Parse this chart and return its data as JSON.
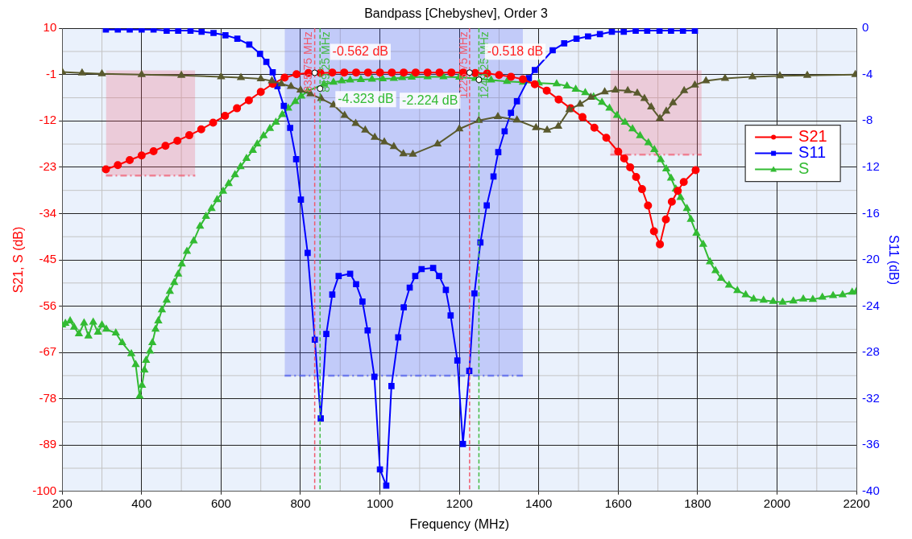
{
  "chart_data": {
    "type": "line",
    "title": "Bandpass [Chebyshev], Order 3",
    "xlabel": "Frequency (MHz)",
    "ylabel": "S21, S (dB)",
    "y2label": "S11 (dB)",
    "xlim": [
      200,
      2200
    ],
    "xticks": [
      200,
      400,
      600,
      800,
      1000,
      1200,
      1400,
      1600,
      1800,
      2000,
      2200
    ],
    "ylim": [
      -100,
      10
    ],
    "yticks": [
      10,
      -1,
      -12,
      -23,
      -34,
      -45,
      -56,
      -67,
      -78,
      -89,
      -100
    ],
    "y2lim": [
      -40,
      0
    ],
    "y2ticks": [
      0,
      -4,
      -8,
      -12,
      -16,
      -20,
      -24,
      -28,
      -32,
      -36,
      -40
    ],
    "grid": true,
    "legend": "right",
    "series": [
      {
        "type": "area",
        "color": "#f05a6e",
        "line_style": "dashed",
        "marker": "none",
        "x": [
          310,
          535
        ],
        "values": [
          -25,
          -25
        ]
      },
      {
        "type": "area",
        "color": "#f05a6e",
        "line_style": "dashed",
        "marker": "none",
        "x": [
          1580,
          1810
        ],
        "values": [
          -20,
          -20
        ]
      },
      {
        "type": "area",
        "color": "#4a5af0",
        "line_style": "dashed",
        "marker": "none",
        "axis": "y2",
        "x": [
          760,
          1360
        ],
        "values": [
          -30,
          -30
        ]
      },
      {
        "color": "#5a5a2e",
        "marker": "triangle",
        "x": [
          200,
          250,
          300,
          400,
          500,
          600,
          650,
          700,
          728,
          752,
          776,
          800,
          825,
          852,
          883,
          911,
          939,
          963,
          987,
          1011,
          1035,
          1059,
          1083,
          1145,
          1200,
          1249,
          1297,
          1345,
          1393,
          1421,
          1449,
          1477,
          1504,
          1531,
          1566,
          1593,
          1624,
          1648,
          1666,
          1683,
          1705,
          1721,
          1738,
          1766,
          1793,
          1821,
          1869,
          1938,
          2007,
          2076,
          2197
        ],
        "values": [
          -0.4,
          -0.6,
          -0.8,
          -1.0,
          -1.2,
          -1.5,
          -1.7,
          -2.0,
          -2.5,
          -3.2,
          -3.8,
          -4.7,
          -5.6,
          -6.7,
          -8.2,
          -10.7,
          -12.6,
          -14.2,
          -15.9,
          -17.0,
          -18.1,
          -19.8,
          -19.9,
          -17.5,
          -13.9,
          -11.9,
          -11.0,
          -11.8,
          -13.6,
          -14.2,
          -13.3,
          -9.3,
          -8.0,
          -6.4,
          -5.1,
          -4.7,
          -4.8,
          -5.4,
          -6.7,
          -8.7,
          -11.4,
          -9.7,
          -7.7,
          -4.8,
          -3.5,
          -2.5,
          -1.9,
          -1.5,
          -1.3,
          -1.2,
          -1.0
        ]
      },
      {
        "name": "S21",
        "color": "#ff0000",
        "marker": "circle",
        "x": [
          310,
          340,
          370,
          400,
          430,
          460,
          490,
          520,
          550,
          580,
          610,
          640,
          670,
          700,
          730,
          760,
          790,
          820,
          850,
          880,
          910,
          940,
          970,
          1000,
          1030,
          1060,
          1090,
          1120,
          1150,
          1180,
          1210,
          1240,
          1270,
          1300,
          1330,
          1360,
          1390,
          1420,
          1450,
          1480,
          1510,
          1540,
          1570,
          1600,
          1615,
          1630,
          1645,
          1660,
          1675,
          1690,
          1705,
          1720,
          1735,
          1750,
          1765,
          1795
        ],
        "values": [
          -23.5,
          -22.5,
          -21.3,
          -20.2,
          -19.2,
          -17.9,
          -16.7,
          -15.4,
          -14.0,
          -12.4,
          -10.8,
          -9.0,
          -7.1,
          -5.1,
          -3.2,
          -1.7,
          -0.9,
          -0.6,
          -0.6,
          -0.5,
          -0.5,
          -0.5,
          -0.5,
          -0.5,
          -0.5,
          -0.5,
          -0.5,
          -0.5,
          -0.5,
          -0.5,
          -0.5,
          -0.6,
          -0.7,
          -1.1,
          -1.5,
          -2.1,
          -3.3,
          -4.8,
          -6.9,
          -9.0,
          -11.1,
          -13.6,
          -16.0,
          -19.3,
          -20.9,
          -23.0,
          -25.3,
          -28.2,
          -32.1,
          -38.2,
          -41.3,
          -35.4,
          -31.2,
          -28.6,
          -26.5,
          -23.7
        ]
      },
      {
        "name": "S11",
        "color": "#0000ff",
        "marker": "square",
        "axis": "y2",
        "x": [
          310,
          340,
          370,
          400,
          430,
          463,
          492,
          523,
          551,
          581,
          611,
          641,
          671,
          698,
          714,
          730,
          742,
          758,
          774,
          789,
          801,
          818,
          836,
          851,
          865,
          880,
          896,
          925,
          940,
          956,
          969,
          986,
          1000,
          1016,
          1029,
          1046,
          1060,
          1075,
          1089,
          1105,
          1134,
          1149,
          1166,
          1178,
          1195,
          1209,
          1225,
          1238,
          1253,
          1269,
          1286,
          1298,
          1314,
          1330,
          1345,
          1375,
          1390,
          1435,
          1464,
          1495,
          1524,
          1554,
          1584,
          1614,
          1644,
          1673,
          1704,
          1733,
          1763,
          1793
        ],
        "values": [
          -0.1,
          -0.1,
          -0.1,
          -0.1,
          -0.1,
          -0.2,
          -0.2,
          -0.2,
          -0.3,
          -0.4,
          -0.6,
          -0.9,
          -1.4,
          -2.2,
          -2.9,
          -3.8,
          -5.0,
          -6.7,
          -8.6,
          -11.3,
          -14.8,
          -19.4,
          -26.9,
          -33.7,
          -26.4,
          -23.0,
          -21.4,
          -21.2,
          -22.1,
          -23.6,
          -26.1,
          -30.1,
          -38.1,
          -39.5,
          -30.9,
          -26.7,
          -24.1,
          -22.4,
          -21.4,
          -20.8,
          -20.7,
          -21.4,
          -22.6,
          -24.8,
          -28.7,
          -35.9,
          -29.6,
          -22.9,
          -18.5,
          -15.3,
          -12.8,
          -10.7,
          -8.9,
          -7.3,
          -6.3,
          -4.3,
          -3.6,
          -1.9,
          -1.3,
          -0.9,
          -0.7,
          -0.5,
          -0.3,
          -0.3,
          -0.2,
          -0.2,
          -0.2,
          -0.2,
          -0.2,
          -0.2
        ]
      },
      {
        "name": "S",
        "color": "#33bb33",
        "marker": "triangle",
        "x": [
          200,
          208,
          220,
          230,
          242,
          255,
          266,
          278,
          290,
          300,
          311,
          335,
          351,
          374,
          385,
          395,
          401,
          407,
          411,
          421,
          427,
          435,
          442,
          451,
          463,
          471,
          482,
          492,
          501,
          514,
          531,
          547,
          562,
          576,
          590,
          605,
          619,
          635,
          649,
          664,
          680,
          691,
          707,
          723,
          738,
          754,
          769,
          787,
          802,
          818,
          859,
          883,
          904,
          925,
          952,
          980,
          1007,
          1035,
          1056,
          1080,
          1120,
          1160,
          1200,
          1240,
          1280,
          1320,
          1360,
          1400,
          1445,
          1471,
          1493,
          1517,
          1538,
          1559,
          1578,
          1597,
          1617,
          1636,
          1655,
          1676,
          1691,
          1707,
          1721,
          1733,
          1745,
          1757,
          1773,
          1783,
          1797,
          1814,
          1831,
          1845,
          1859,
          1879,
          1900,
          1921,
          1941,
          1966,
          1990,
          2014,
          2041,
          2066,
          2090,
          2114,
          2141,
          2165,
          2189,
          2200
        ],
        "values": [
          -60.5,
          -60.1,
          -59.5,
          -61.0,
          -62.6,
          -60.0,
          -63.1,
          -59.8,
          -62.2,
          -60.5,
          -61.5,
          -62.4,
          -64.7,
          -67.3,
          -69.9,
          -77.4,
          -74.8,
          -71.2,
          -68.9,
          -66.7,
          -64.7,
          -61.5,
          -59.5,
          -56.9,
          -54.6,
          -52.5,
          -50.4,
          -48.4,
          -46.0,
          -43.0,
          -40.5,
          -37.0,
          -34.7,
          -32.8,
          -30.7,
          -28.7,
          -26.9,
          -24.8,
          -22.9,
          -20.9,
          -19.0,
          -17.5,
          -15.5,
          -13.8,
          -12.3,
          -10.5,
          -9.0,
          -7.4,
          -6.1,
          -4.9,
          -3.3,
          -2.8,
          -2.5,
          -2.3,
          -2.2,
          -2.1,
          -2.0,
          -1.9,
          -1.7,
          -1.6,
          -1.5,
          -1.5,
          -1.6,
          -1.9,
          -2.3,
          -2.6,
          -2.8,
          -3.0,
          -3.2,
          -3.7,
          -4.5,
          -5.3,
          -6.3,
          -7.6,
          -9.0,
          -10.7,
          -12.3,
          -13.9,
          -15.5,
          -17.2,
          -18.8,
          -21.2,
          -23.4,
          -25.6,
          -28.2,
          -30.2,
          -32.8,
          -35.4,
          -38.7,
          -41.3,
          -45.5,
          -47.6,
          -49.4,
          -51.0,
          -52.3,
          -53.3,
          -54.3,
          -54.6,
          -54.9,
          -55.1,
          -54.8,
          -54.3,
          -54.4,
          -53.9,
          -53.5,
          -53.3,
          -52.7,
          -52.5
        ]
      }
    ],
    "ref_lines": [
      {
        "axis": "x",
        "value": 835.75,
        "label": "835.75 MHz",
        "color": "#f05a6e",
        "line_style": "dashed"
      },
      {
        "axis": "x",
        "value": 849.25,
        "label": "849.25 MHz",
        "color": "#44bb44",
        "line_style": "dashed"
      },
      {
        "axis": "x",
        "value": 1225.75,
        "label": "1225.75 MHz",
        "color": "#f05a6e",
        "line_style": "dashed"
      },
      {
        "axis": "x",
        "value": 1249.25,
        "label": "1249.25 MHz",
        "color": "#44bb44",
        "line_style": "dashed"
      }
    ],
    "annotations": [
      {
        "text": "-0.562 dB",
        "x": 835.75,
        "y": -0.562
      },
      {
        "text": "-4.323 dB",
        "x": 849.25,
        "y": -4.323
      },
      {
        "text": "-0.518 dB",
        "x": 1225.75,
        "y": -0.518
      },
      {
        "text": "-2.224 dB",
        "x": 1249.25,
        "y": -2.224
      }
    ]
  }
}
